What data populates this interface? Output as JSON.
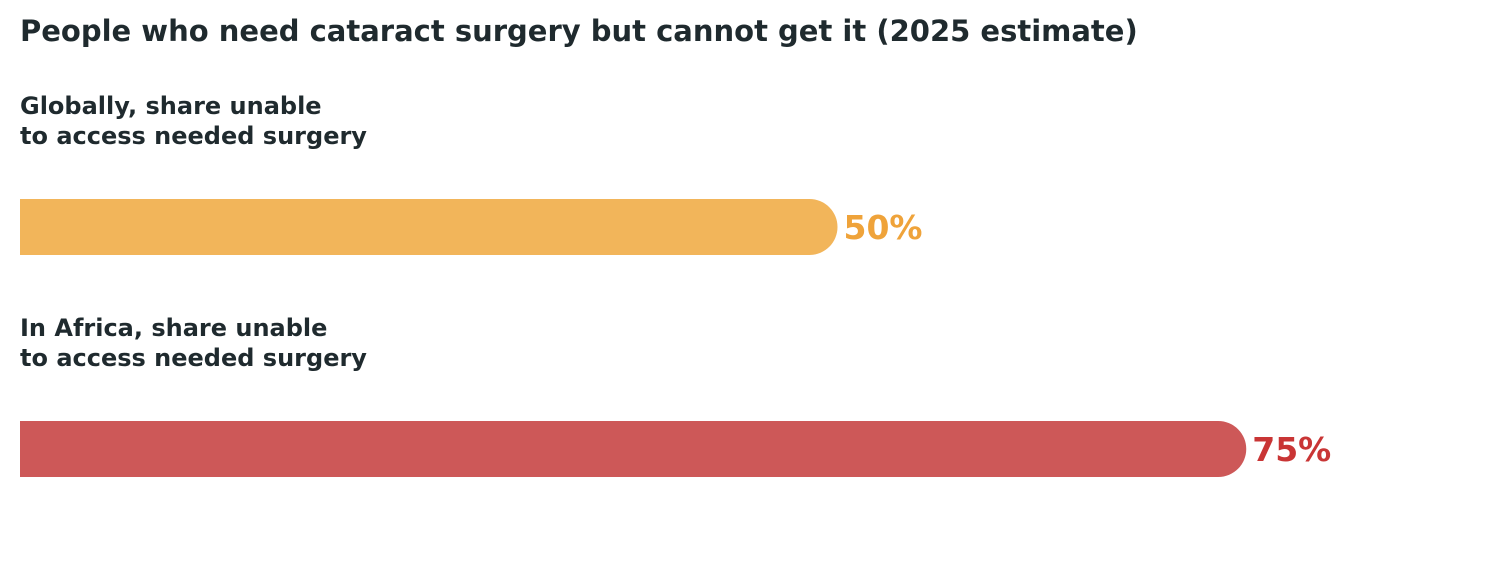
{
  "chart_data": {
    "type": "bar",
    "orientation": "horizontal",
    "title": "People who need cataract surgery but cannot get it (2025 estimate)",
    "categories": [
      [
        "Globally, share unable",
        "to access needed surgery"
      ],
      [
        "In Africa, share unable",
        "to access needed surgery"
      ]
    ],
    "values": [
      50,
      75
    ],
    "value_labels": [
      "50%",
      "75%"
    ],
    "bar_colors": [
      "#f2b55a",
      "#cd5858"
    ],
    "value_label_colors": [
      "#efa33a",
      "#c93535"
    ],
    "xlim": [
      0,
      100
    ],
    "grid": false,
    "legend": "none"
  }
}
